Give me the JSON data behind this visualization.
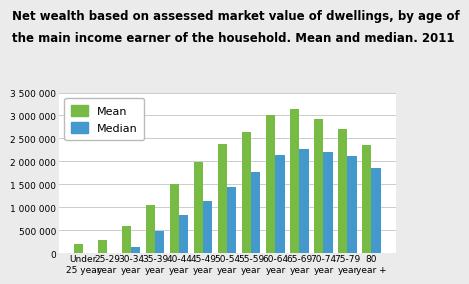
{
  "title_line1": "Net wealth based on assessed market value of dwellings, by age of",
  "title_line2": "the main income earner of the household. Mean and median. 2011",
  "categories_line1": [
    "Under",
    "25-29",
    "30-34",
    "35-39",
    "40-44",
    "45-49",
    "50-54",
    "55-59",
    "60-64",
    "65-69",
    "70-74",
    "75-79",
    "80"
  ],
  "categories_line2": [
    "25 year",
    "year",
    "year",
    "year",
    "year",
    "year",
    "year",
    "year",
    "year",
    "year",
    "year",
    "year",
    "year +"
  ],
  "mean_values": [
    200000,
    290000,
    590000,
    1040000,
    1510000,
    1980000,
    2380000,
    2650000,
    3000000,
    3150000,
    2920000,
    2700000,
    2360000
  ],
  "median_values": [
    0,
    0,
    145000,
    490000,
    830000,
    1140000,
    1450000,
    1770000,
    2130000,
    2270000,
    2200000,
    2110000,
    1850000
  ],
  "mean_color": "#77bb44",
  "median_color": "#4499cc",
  "ylim": [
    0,
    3500000
  ],
  "yticks": [
    0,
    500000,
    1000000,
    1500000,
    2000000,
    2500000,
    3000000,
    3500000
  ],
  "ytick_labels": [
    "0",
    "500 000",
    "1 000 000",
    "1 500 000",
    "2 000 000",
    "2 500 000",
    "3 000 000",
    "3 500 000"
  ],
  "legend_labels": [
    "Mean",
    "Median"
  ],
  "background_color": "#ebebeb",
  "plot_bg_color": "#ffffff",
  "grid_color": "#cccccc",
  "title_fontsize": 8.5,
  "tick_fontsize": 6.5,
  "legend_fontsize": 8
}
